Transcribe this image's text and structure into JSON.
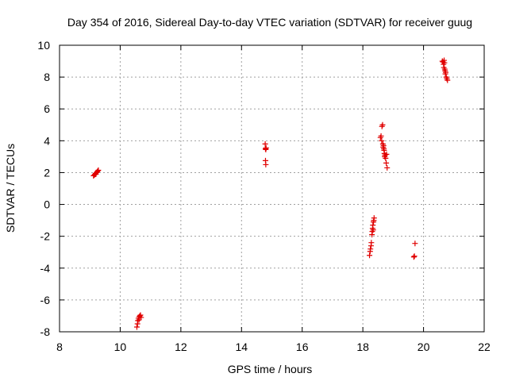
{
  "chart_data": {
    "type": "scatter",
    "title": "Day 354 of 2016, Sidereal Day-to-day VTEC variation (SDTVAR) for receiver guug",
    "xlabel": "GPS time / hours",
    "ylabel": "SDTVAR / TECUs",
    "xlim": [
      8,
      22
    ],
    "ylim": [
      -8,
      10
    ],
    "xticks": [
      8,
      10,
      12,
      14,
      16,
      18,
      20,
      22
    ],
    "yticks": [
      -8,
      -6,
      -4,
      -2,
      0,
      2,
      4,
      6,
      8,
      10
    ],
    "grid": true,
    "marker": "+",
    "color": "#e00000",
    "series": [
      {
        "name": "SDTVAR",
        "points": [
          [
            9.12,
            1.8
          ],
          [
            9.15,
            1.85
          ],
          [
            9.17,
            1.9
          ],
          [
            9.19,
            1.95
          ],
          [
            9.2,
            1.9
          ],
          [
            9.22,
            2.0
          ],
          [
            9.24,
            2.05
          ],
          [
            9.26,
            2.1
          ],
          [
            9.28,
            2.15
          ],
          [
            10.55,
            -7.7
          ],
          [
            10.57,
            -7.5
          ],
          [
            10.58,
            -7.3
          ],
          [
            10.6,
            -7.15
          ],
          [
            10.62,
            -7.25
          ],
          [
            10.63,
            -7.05
          ],
          [
            10.65,
            -7.0
          ],
          [
            10.67,
            -6.95
          ],
          [
            10.69,
            -7.1
          ],
          [
            14.78,
            3.8
          ],
          [
            14.79,
            3.5
          ],
          [
            14.8,
            3.45
          ],
          [
            14.81,
            3.55
          ],
          [
            14.79,
            2.75
          ],
          [
            14.8,
            2.5
          ],
          [
            18.22,
            -3.2
          ],
          [
            18.24,
            -2.95
          ],
          [
            18.25,
            -2.8
          ],
          [
            18.27,
            -2.6
          ],
          [
            18.28,
            -2.4
          ],
          [
            18.3,
            -1.9
          ],
          [
            18.31,
            -1.7
          ],
          [
            18.32,
            -1.5
          ],
          [
            18.33,
            -1.3
          ],
          [
            18.35,
            -1.1
          ],
          [
            18.36,
            -1.0
          ],
          [
            18.37,
            -0.85
          ],
          [
            18.34,
            -1.6
          ],
          [
            18.58,
            4.2
          ],
          [
            18.6,
            4.3
          ],
          [
            18.62,
            4.0
          ],
          [
            18.63,
            4.9
          ],
          [
            18.65,
            5.0
          ],
          [
            18.66,
            3.8
          ],
          [
            18.67,
            3.6
          ],
          [
            18.69,
            3.5
          ],
          [
            18.7,
            3.4
          ],
          [
            18.71,
            3.2
          ],
          [
            18.72,
            3.0
          ],
          [
            18.73,
            3.1
          ],
          [
            18.75,
            2.9
          ],
          [
            18.77,
            2.6
          ],
          [
            18.8,
            2.3
          ],
          [
            18.78,
            3.15
          ],
          [
            18.68,
            3.7
          ],
          [
            19.68,
            -3.3
          ],
          [
            19.7,
            -3.25
          ],
          [
            19.72,
            -2.45
          ],
          [
            20.62,
            9.0
          ],
          [
            20.64,
            8.95
          ],
          [
            20.66,
            8.8
          ],
          [
            20.67,
            8.6
          ],
          [
            20.69,
            8.9
          ],
          [
            20.7,
            8.5
          ],
          [
            20.71,
            8.4
          ],
          [
            20.72,
            8.2
          ],
          [
            20.73,
            8.3
          ],
          [
            20.75,
            8.0
          ],
          [
            20.77,
            7.9
          ],
          [
            20.79,
            7.8
          ],
          [
            20.68,
            9.05
          ]
        ]
      }
    ]
  }
}
